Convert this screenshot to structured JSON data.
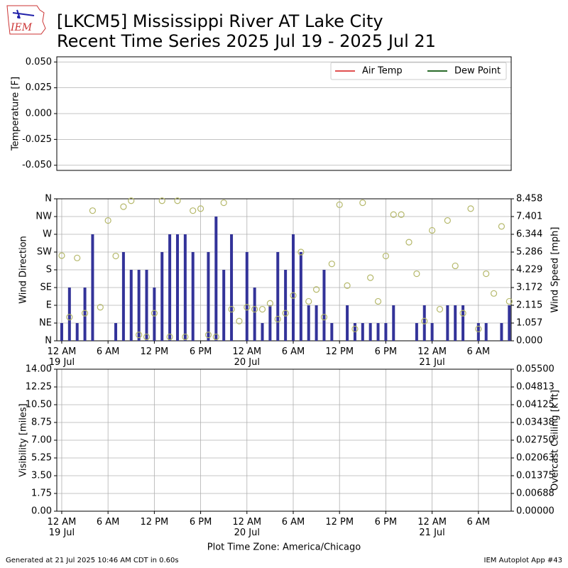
{
  "logo": "IEM",
  "title": [
    "[LKCM5] Mississippi River  AT Lake City",
    "Recent Time Series 2025 Jul 19 - 2025 Jul 21"
  ],
  "footer": {
    "left": "Generated at 21 Jul 2025 10:46 AM CDT in 0.60s",
    "right": "IEM Autoplot App #43"
  },
  "chart_data": [
    {
      "type": "line",
      "ylabel": "Temperature [F]",
      "ylim": [
        -0.055,
        0.055
      ],
      "yticks": [
        {
          "value": -0.05,
          "label": "-0.050"
        },
        {
          "value": -0.025,
          "label": "-0.025"
        },
        {
          "value": 0,
          "label": "0.000"
        },
        {
          "value": 0.025,
          "label": "0.025"
        },
        {
          "value": 0.05,
          "label": "0.050"
        }
      ],
      "xlim": [
        -0.64,
        58.25
      ],
      "grid": true,
      "xgrid": false,
      "legend": "upper right",
      "x": [],
      "series": [
        {
          "name": "Air Temp",
          "color": "#e05050",
          "values": []
        },
        {
          "name": "Dew Point",
          "color": "#2a6a2a",
          "values": []
        }
      ]
    },
    {
      "type": "combo",
      "ylabel": "Wind Direction",
      "y2label": "Wind Speed [mph]",
      "ylim": [
        0,
        360
      ],
      "yticks": [
        {
          "value": 0,
          "label": "N"
        },
        {
          "value": 45,
          "label": "NE"
        },
        {
          "value": 90,
          "label": "E"
        },
        {
          "value": 135,
          "label": "SE"
        },
        {
          "value": 180,
          "label": "S"
        },
        {
          "value": 225,
          "label": "SW"
        },
        {
          "value": 270,
          "label": "W"
        },
        {
          "value": 315,
          "label": "NW"
        },
        {
          "value": 360,
          "label": "N"
        }
      ],
      "y2lim": [
        0,
        8.458
      ],
      "y2ticks": [
        {
          "value": 0,
          "label": "0.000"
        },
        1.057,
        2.115,
        3.172,
        4.229,
        5.286,
        6.344,
        7.401,
        8.458
      ],
      "xlim": [
        -0.64,
        58.25
      ],
      "xticks": [
        {
          "value": 0,
          "label": "12 AM\n19 Jul"
        },
        {
          "value": 6,
          "label": "6 AM"
        },
        {
          "value": 12,
          "label": "12 PM"
        },
        {
          "value": 18,
          "label": "6 PM"
        },
        {
          "value": 24,
          "label": "12 AM\n20 Jul"
        },
        {
          "value": 30,
          "label": "6 AM"
        },
        {
          "value": 36,
          "label": "12 PM"
        },
        {
          "value": 42,
          "label": "6 PM"
        },
        {
          "value": 48,
          "label": "12 AM\n21 Jul"
        },
        {
          "value": 54,
          "label": "6 AM"
        }
      ],
      "grid": true,
      "xgrid": true,
      "x": [
        0,
        1,
        2,
        3,
        4,
        5,
        6,
        7,
        8,
        9,
        10,
        11,
        12,
        13,
        14,
        15,
        16,
        17,
        18,
        19,
        20,
        21,
        22,
        23,
        24,
        25,
        26,
        27,
        28,
        29,
        30,
        31,
        32,
        33,
        34,
        35,
        36,
        37,
        38,
        39,
        40,
        41,
        42,
        43,
        44,
        45,
        46,
        47,
        48,
        49,
        50,
        51,
        52,
        53,
        54,
        55,
        56,
        57,
        58
      ],
      "series": [
        {
          "kind": "bar",
          "axis": "y2",
          "color": "#333399",
          "values": [
            1.057,
            3.172,
            1.057,
            3.172,
            6.344,
            0,
            0,
            1.057,
            5.286,
            4.229,
            4.229,
            4.229,
            3.172,
            5.286,
            6.344,
            6.344,
            6.344,
            5.286,
            0,
            5.286,
            7.401,
            4.229,
            6.344,
            0,
            5.286,
            3.172,
            1.057,
            2.115,
            5.286,
            4.229,
            6.344,
            5.286,
            2.115,
            2.115,
            4.229,
            1.057,
            0,
            2.115,
            1.057,
            1.057,
            1.057,
            1.057,
            1.057,
            2.115,
            0,
            0,
            1.057,
            2.115,
            1.057,
            0,
            2.115,
            2.115,
            2.115,
            0,
            1.057,
            1.057,
            0,
            1.057,
            2.115
          ]
        },
        {
          "kind": "scatter",
          "axis": "y",
          "color": "#b5b86a",
          "values": [
            216,
            60,
            210,
            70,
            330,
            85,
            305,
            215,
            340,
            355,
            15,
            10,
            70,
            355,
            10,
            355,
            10,
            330,
            335,
            15,
            10,
            350,
            80,
            50,
            85,
            80,
            80,
            95,
            55,
            70,
            115,
            225,
            100,
            130,
            60,
            195,
            345,
            140,
            30,
            350,
            160,
            100,
            215,
            320,
            320,
            250,
            170,
            50,
            280,
            80,
            305,
            190,
            70,
            335,
            30,
            170,
            120,
            290,
            100
          ]
        }
      ]
    },
    {
      "type": "line",
      "ylabel": "Visibility [miles]",
      "y2label": "Overcast Ceiling [k ft]",
      "y2label_color": "#008000",
      "ylim": [
        0,
        14
      ],
      "yticks": [
        {
          "value": 0,
          "label": "0.00"
        },
        1.75,
        {
          "value": 3.5,
          "label": "3.50"
        },
        5.25,
        {
          "value": 7,
          "label": "7.00"
        },
        8.75,
        {
          "value": 10.5,
          "label": "10.50"
        },
        12.25,
        {
          "value": 14,
          "label": "14.00"
        }
      ],
      "y2lim": [
        0,
        0.055
      ],
      "y2ticks": [
        {
          "value": 0,
          "label": "0.00000"
        },
        {
          "value": 0.006875,
          "label": "0.00688"
        },
        {
          "value": 0.01375,
          "label": "0.01375"
        },
        {
          "value": 0.020625,
          "label": "0.02063"
        },
        {
          "value": 0.0275,
          "label": "0.02750"
        },
        {
          "value": 0.034375,
          "label": "0.03438"
        },
        {
          "value": 0.04125,
          "label": "0.04125"
        },
        {
          "value": 0.048125,
          "label": "0.04813"
        },
        {
          "value": 0.055,
          "label": "0.05500"
        }
      ],
      "xlim": [
        -0.64,
        58.25
      ],
      "xticks": [
        {
          "value": 0,
          "label": "12 AM\n19 Jul"
        },
        {
          "value": 6,
          "label": "6 AM"
        },
        {
          "value": 12,
          "label": "12 PM"
        },
        {
          "value": 18,
          "label": "6 PM"
        },
        {
          "value": 24,
          "label": "12 AM\n20 Jul"
        },
        {
          "value": 30,
          "label": "6 AM"
        },
        {
          "value": 36,
          "label": "12 PM"
        },
        {
          "value": 42,
          "label": "6 PM"
        },
        {
          "value": 48,
          "label": "12 AM\n21 Jul"
        },
        {
          "value": 54,
          "label": "6 AM"
        }
      ],
      "xlabel": "Plot Time Zone: America/Chicago",
      "grid": true,
      "xgrid": true,
      "x": [],
      "series": []
    }
  ]
}
